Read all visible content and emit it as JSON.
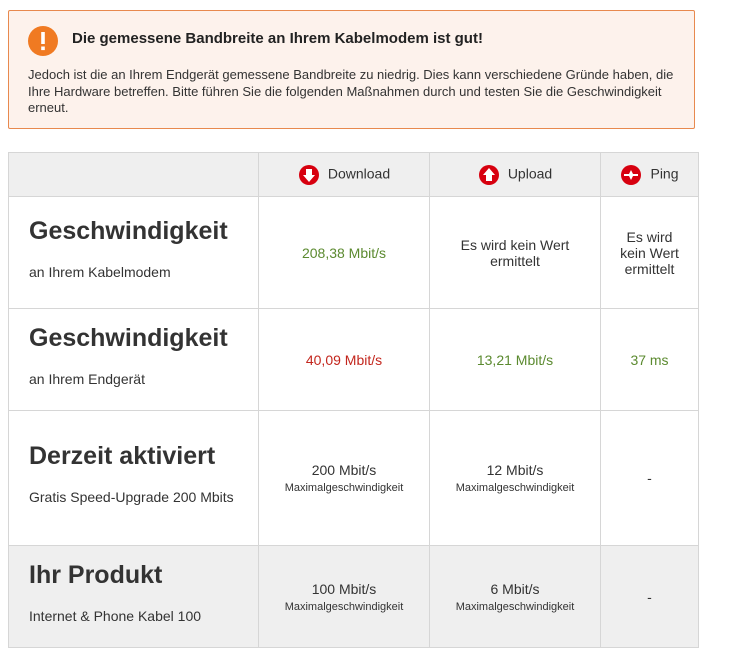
{
  "alert": {
    "title": "Die gemessene Bandbreite an Ihrem Kabelmodem ist gut!",
    "body": "Jedoch ist die an Ihrem Endgerät gemessene Bandbreite zu niedrig. Dies kann verschiedene Gründe haben, die Ihre Hardware betreffen. Bitte führen Sie die folgenden Maßnahmen durch und testen Sie die Geschwindigkeit erneut."
  },
  "table": {
    "headers": [
      "Download",
      "Upload",
      "Ping"
    ],
    "rows": [
      {
        "title": "Geschwindigkeit",
        "subtitle": "an Ihrem Kabelmodem",
        "cells": [
          {
            "value": "208,38 Mbit/s",
            "color": "#5b8a2f"
          },
          {
            "value": "Es wird kein Wert ermittelt"
          },
          {
            "value": "Es wird kein Wert ermittelt"
          }
        ]
      },
      {
        "title": "Geschwindigkeit",
        "subtitle": "an Ihrem Endgerät",
        "cells": [
          {
            "value": "40,09 Mbit/s",
            "color": "#c3261d"
          },
          {
            "value": "13,21 Mbit/s",
            "color": "#5b8a2f"
          },
          {
            "value": "37 ms",
            "color": "#5b8a2f"
          }
        ]
      },
      {
        "title": "Derzeit aktiviert",
        "subtitle": "Gratis Speed-Upgrade 200 Mbits",
        "cells": [
          {
            "value": "200 Mbit/s",
            "note": "Maximalgeschwindigkeit"
          },
          {
            "value": "12 Mbit/s",
            "note": "Maximalgeschwindigkeit"
          },
          {
            "value": "-"
          }
        ]
      },
      {
        "title": "Ihr Produkt",
        "subtitle": "Internet & Phone Kabel 100",
        "cells": [
          {
            "value": "100 Mbit/s",
            "note": "Maximalgeschwindigkeit"
          },
          {
            "value": "6 Mbit/s",
            "note": "Maximalgeschwindigkeit"
          },
          {
            "value": "-"
          }
        ]
      }
    ]
  }
}
